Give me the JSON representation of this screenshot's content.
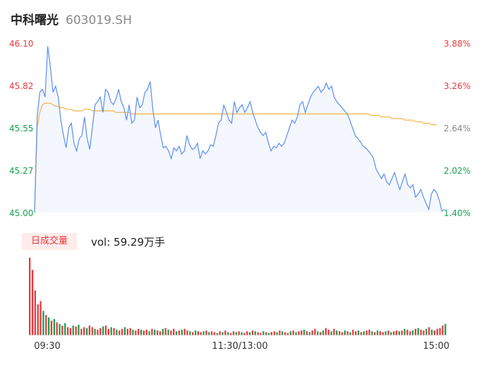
{
  "header": {
    "name": "中科曙光",
    "code": "603019.SH"
  },
  "volume_panel": {
    "badge": "日成交量",
    "vol_label": "vol: 59.29万手"
  },
  "colors": {
    "price_line": "#5b8ff0",
    "avg_line": "#f3b443",
    "up": "#e8393d",
    "down": "#18a052",
    "area": "#f4f7fd"
  },
  "chart_data": [
    {
      "type": "line",
      "title": "",
      "y_left_ticks": [
        "46.10",
        "45.82",
        "45.55",
        "45.27",
        "45.00"
      ],
      "y_right_ticks": [
        "3.88%",
        "3.26%",
        "2.64%",
        "2.02%",
        "1.40%"
      ],
      "ylim": [
        45.0,
        46.1
      ],
      "x_ticks": [
        "09:30",
        "11:30/13:00",
        "15:00"
      ],
      "series": [
        {
          "values": [
            45.0,
            45.62,
            45.78,
            45.8,
            45.75,
            46.08,
            45.95,
            45.78,
            45.82,
            45.75,
            45.6,
            45.5,
            45.42,
            45.55,
            45.58,
            45.45,
            45.4,
            45.48,
            45.5,
            45.62,
            45.48,
            45.41,
            45.55,
            45.7,
            45.72,
            45.75,
            45.65,
            45.8,
            45.78,
            45.72,
            45.7,
            45.74,
            45.8,
            45.72,
            45.68,
            45.6,
            45.7,
            45.58,
            45.6,
            45.75,
            45.68,
            45.7,
            45.78,
            45.8,
            45.85,
            45.67,
            45.55,
            45.6,
            45.5,
            45.42,
            45.43,
            45.4,
            45.35,
            45.42,
            45.4,
            45.43,
            45.38,
            45.4,
            45.5,
            45.44,
            45.41,
            45.42,
            45.45,
            45.35,
            45.4,
            45.38,
            45.4,
            45.44,
            45.43,
            45.5,
            45.58,
            45.6,
            45.7,
            45.65,
            45.6,
            45.58,
            45.72,
            45.65,
            45.68,
            45.7,
            45.65,
            45.68,
            45.72,
            45.65,
            45.6,
            45.55,
            45.52,
            45.5,
            45.52,
            45.45,
            45.4,
            45.43,
            45.42,
            45.45,
            45.43,
            45.45,
            45.5,
            45.55,
            45.6,
            45.58,
            45.62,
            45.7,
            45.72,
            45.65,
            45.7,
            45.75,
            45.78,
            45.8,
            45.82,
            45.78,
            45.8,
            45.84,
            45.8,
            45.82,
            45.75,
            45.72,
            45.7,
            45.68,
            45.66,
            45.64,
            45.6,
            45.55,
            45.5,
            45.48,
            45.46,
            45.43,
            45.42,
            45.4,
            45.38,
            45.35,
            45.28,
            45.25,
            45.22,
            45.25,
            45.2,
            45.18,
            45.22,
            45.26,
            45.2,
            45.15,
            45.2,
            45.25,
            45.18,
            45.16,
            45.18,
            45.1,
            45.12,
            45.15,
            45.1,
            45.06,
            45.02,
            45.12,
            45.15,
            45.13,
            45.08,
            45.01,
            45.02
          ]
        },
        {
          "values": [
            45.0,
            45.55,
            45.65,
            45.7,
            45.71,
            45.71,
            45.71,
            45.7,
            45.69,
            45.69,
            45.68,
            45.68,
            45.67,
            45.67,
            45.67,
            45.66,
            45.66,
            45.66,
            45.66,
            45.67,
            45.67,
            45.67,
            45.66,
            45.66,
            45.66,
            45.66,
            45.66,
            45.66,
            45.66,
            45.66,
            45.66,
            45.65,
            45.65,
            45.65,
            45.65,
            45.65,
            45.65,
            45.64,
            45.64,
            45.64,
            45.64,
            45.64,
            45.64,
            45.64,
            45.64,
            45.64,
            45.64,
            45.64,
            45.64,
            45.64,
            45.64,
            45.64,
            45.64,
            45.64,
            45.64,
            45.64,
            45.64,
            45.64,
            45.64,
            45.64,
            45.64,
            45.64,
            45.64,
            45.64,
            45.64,
            45.64,
            45.64,
            45.64,
            45.64,
            45.64,
            45.64,
            45.64,
            45.64,
            45.64,
            45.64,
            45.64,
            45.64,
            45.64,
            45.64,
            45.64,
            45.64,
            45.64,
            45.64,
            45.64,
            45.64,
            45.64,
            45.64,
            45.64,
            45.64,
            45.64,
            45.64,
            45.64,
            45.64,
            45.64,
            45.64,
            45.64,
            45.64,
            45.64,
            45.64,
            45.64,
            45.64,
            45.64,
            45.64,
            45.64,
            45.64,
            45.64,
            45.64,
            45.64,
            45.64,
            45.64,
            45.64,
            45.64,
            45.64,
            45.64,
            45.64,
            45.64,
            45.64,
            45.64,
            45.64,
            45.64,
            45.64,
            45.64,
            45.64,
            45.64,
            45.64,
            45.64,
            45.64,
            45.64,
            45.63,
            45.63,
            45.63,
            45.63,
            45.62,
            45.62,
            45.62,
            45.62,
            45.61,
            45.61,
            45.61,
            45.61,
            45.61,
            45.6,
            45.6,
            45.6,
            45.6,
            45.59,
            45.59,
            45.59,
            45.58,
            45.58,
            45.58,
            45.57,
            45.57,
            45.57
          ]
        }
      ]
    },
    {
      "type": "bar",
      "title": "",
      "series": [
        {
          "values": [
            95,
            80,
            55,
            38,
            42,
            30,
            25,
            22,
            18,
            20,
            16,
            14,
            12,
            15,
            10,
            9,
            12,
            11,
            13,
            8,
            10,
            9,
            12,
            10,
            8,
            7,
            9,
            11,
            12,
            8,
            10,
            9,
            7,
            6,
            8,
            10,
            8,
            9,
            7,
            6,
            8,
            7,
            6,
            7,
            5,
            8,
            7,
            6,
            5,
            8,
            9,
            7,
            6,
            8,
            5,
            6,
            7,
            8,
            6,
            5,
            4,
            6,
            5,
            4,
            5,
            6,
            4,
            5,
            4,
            3,
            5,
            4,
            6,
            4,
            3,
            5,
            4,
            5,
            4,
            3,
            5,
            4,
            6,
            5,
            4,
            3,
            5,
            4,
            3,
            4,
            5,
            4,
            6,
            5,
            4,
            3,
            5,
            6,
            4,
            5,
            6,
            7,
            5,
            4,
            6,
            8,
            5,
            4,
            6,
            9,
            7,
            5,
            8,
            6,
            5,
            4,
            6,
            5,
            4,
            7,
            5,
            6,
            4,
            5,
            6,
            7,
            5,
            4,
            6,
            5,
            4,
            5,
            6,
            4,
            5,
            6,
            5,
            6,
            8,
            7,
            5,
            6,
            8,
            9,
            7,
            6,
            8,
            10,
            7,
            6,
            8,
            9,
            12,
            14
          ],
          "colors": [
            "up",
            "up",
            "up",
            "up",
            "up",
            "down",
            "up",
            "down",
            "up",
            "down",
            "up",
            "down",
            "up",
            "down",
            "up",
            "up",
            "down",
            "up",
            "down",
            "up",
            "up",
            "down",
            "up",
            "up",
            "down",
            "up",
            "up",
            "down",
            "up",
            "up",
            "down",
            "up",
            "down",
            "up",
            "up",
            "down",
            "up",
            "up",
            "down",
            "up",
            "up",
            "down",
            "up",
            "up",
            "down",
            "up",
            "down",
            "up",
            "up",
            "down",
            "up",
            "down",
            "up",
            "up",
            "down",
            "up",
            "down",
            "up",
            "up",
            "down",
            "up",
            "down",
            "up",
            "up",
            "down",
            "up",
            "down",
            "up",
            "up",
            "down",
            "up",
            "down",
            "up",
            "down",
            "up",
            "up",
            "down",
            "up",
            "down",
            "up",
            "up",
            "down",
            "up",
            "down",
            "up",
            "up",
            "down",
            "up",
            "down",
            "up",
            "up",
            "down",
            "up",
            "down",
            "up",
            "up",
            "down",
            "up",
            "down",
            "up",
            "up",
            "down",
            "up",
            "down",
            "up",
            "up",
            "down",
            "up",
            "down",
            "up",
            "up",
            "down",
            "up",
            "down",
            "up",
            "up",
            "down",
            "up",
            "down",
            "up",
            "up",
            "down",
            "up",
            "down",
            "up",
            "up",
            "down",
            "up",
            "down",
            "up",
            "up",
            "down",
            "up",
            "down",
            "up",
            "up",
            "down",
            "up",
            "down",
            "up",
            "up",
            "down",
            "up",
            "down",
            "up",
            "up",
            "down",
            "up",
            "down",
            "up",
            "up",
            "up",
            "up",
            "down"
          ]
        }
      ]
    }
  ]
}
